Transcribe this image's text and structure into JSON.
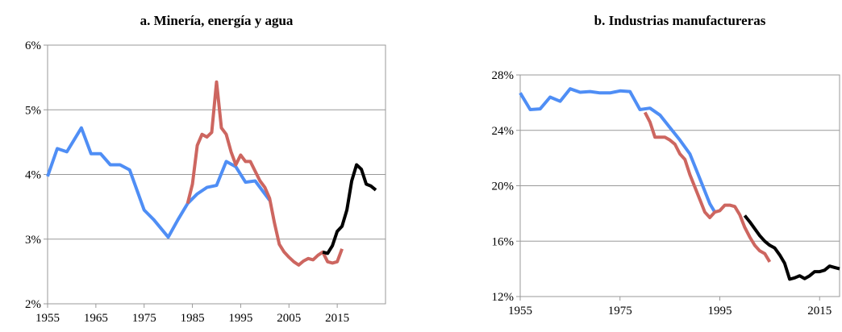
{
  "chart_data": [
    {
      "type": "line",
      "title": "a. Minería, energía y agua",
      "grid": true,
      "xlim": [
        1955,
        2025
      ],
      "xticks": [
        1955,
        1965,
        1975,
        1985,
        1995,
        2005,
        2015
      ],
      "ylim": [
        2,
        6
      ],
      "yticks": [
        {
          "value": 2,
          "label": "2%"
        },
        {
          "value": 3,
          "label": "3%"
        },
        {
          "value": 4,
          "label": "4%"
        },
        {
          "value": 5,
          "label": "5%"
        },
        {
          "value": 6,
          "label": "6%"
        }
      ],
      "series": [
        {
          "color": "#4f8ef5",
          "x": [
            1955,
            1957,
            1959,
            1962,
            1964,
            1966,
            1968,
            1970,
            1972,
            1975,
            1977,
            1980,
            1982,
            1984,
            1986,
            1988,
            1990,
            1992,
            1994,
            1996,
            1998,
            2001
          ],
          "values": [
            3.97,
            4.4,
            4.35,
            4.72,
            4.32,
            4.32,
            4.15,
            4.15,
            4.07,
            3.45,
            3.3,
            3.03,
            3.3,
            3.55,
            3.7,
            3.8,
            3.83,
            4.2,
            4.12,
            3.88,
            3.9,
            3.6
          ]
        },
        {
          "color": "#cd6660",
          "x": [
            1984,
            1985,
            1986,
            1987,
            1988,
            1989,
            1990,
            1991,
            1992,
            1993,
            1994,
            1995,
            1996,
            1997,
            1998,
            1999,
            2000,
            2001,
            2002,
            2003,
            2004,
            2005,
            2006,
            2007,
            2008,
            2009,
            2010,
            2011,
            2012,
            2013,
            2014,
            2015,
            2016
          ],
          "values": [
            3.55,
            3.85,
            4.45,
            4.62,
            4.58,
            4.65,
            5.43,
            4.72,
            4.62,
            4.35,
            4.15,
            4.3,
            4.2,
            4.2,
            4.05,
            3.9,
            3.8,
            3.63,
            3.25,
            2.92,
            2.8,
            2.72,
            2.65,
            2.6,
            2.66,
            2.7,
            2.68,
            2.75,
            2.8,
            2.65,
            2.63,
            2.65,
            2.85
          ]
        },
        {
          "color": "#000000",
          "x": [
            2012,
            2013,
            2014,
            2015,
            2016,
            2017,
            2018,
            2019,
            2020,
            2021,
            2022,
            2023
          ],
          "values": [
            2.8,
            2.78,
            2.9,
            3.12,
            3.2,
            3.45,
            3.9,
            4.15,
            4.08,
            3.85,
            3.82,
            3.76
          ]
        }
      ]
    },
    {
      "type": "line",
      "title": "b. Industrias manufactureras",
      "grid": true,
      "xlim": [
        1955,
        2019
      ],
      "xticks": [
        1955,
        1975,
        1995,
        2015
      ],
      "ylim": [
        12,
        28
      ],
      "yticks": [
        {
          "value": 12,
          "label": "12%"
        },
        {
          "value": 16,
          "label": "16%"
        },
        {
          "value": 20,
          "label": "20%"
        },
        {
          "value": 24,
          "label": "24%"
        },
        {
          "value": 28,
          "label": "28%"
        }
      ],
      "series": [
        {
          "color": "#4f8ef5",
          "x": [
            1955,
            1957,
            1959,
            1961,
            1963,
            1965,
            1967,
            1969,
            1971,
            1973,
            1975,
            1977,
            1979,
            1981,
            1983,
            1985,
            1987,
            1989,
            1991,
            1993,
            1994
          ],
          "values": [
            26.7,
            25.5,
            25.55,
            26.4,
            26.1,
            27.0,
            26.75,
            26.8,
            26.7,
            26.7,
            26.85,
            26.8,
            25.5,
            25.6,
            25.1,
            24.2,
            23.3,
            22.3,
            20.5,
            18.7,
            18.1
          ]
        },
        {
          "color": "#cd6660",
          "x": [
            1980,
            1981,
            1982,
            1983,
            1984,
            1985,
            1986,
            1987,
            1988,
            1989,
            1990,
            1991,
            1992,
            1993,
            1994,
            1995,
            1996,
            1997,
            1998,
            1999,
            2000,
            2001,
            2002,
            2003,
            2004,
            2005
          ],
          "values": [
            25.3,
            24.6,
            23.5,
            23.5,
            23.5,
            23.3,
            23.0,
            22.3,
            21.9,
            20.8,
            19.9,
            19.0,
            18.1,
            17.7,
            18.1,
            18.2,
            18.6,
            18.6,
            18.5,
            17.9,
            17.0,
            16.3,
            15.7,
            15.3,
            15.1,
            14.5
          ]
        },
        {
          "color": "#000000",
          "x": [
            2000,
            2001,
            2002,
            2003,
            2004,
            2005,
            2006,
            2007,
            2008,
            2009,
            2010,
            2011,
            2012,
            2013,
            2014,
            2015,
            2016,
            2017,
            2018,
            2019
          ],
          "values": [
            17.85,
            17.4,
            16.9,
            16.4,
            16.0,
            15.7,
            15.5,
            15.0,
            14.4,
            13.25,
            13.35,
            13.5,
            13.3,
            13.5,
            13.8,
            13.8,
            13.9,
            14.2,
            14.1,
            14.0
          ]
        }
      ]
    }
  ]
}
